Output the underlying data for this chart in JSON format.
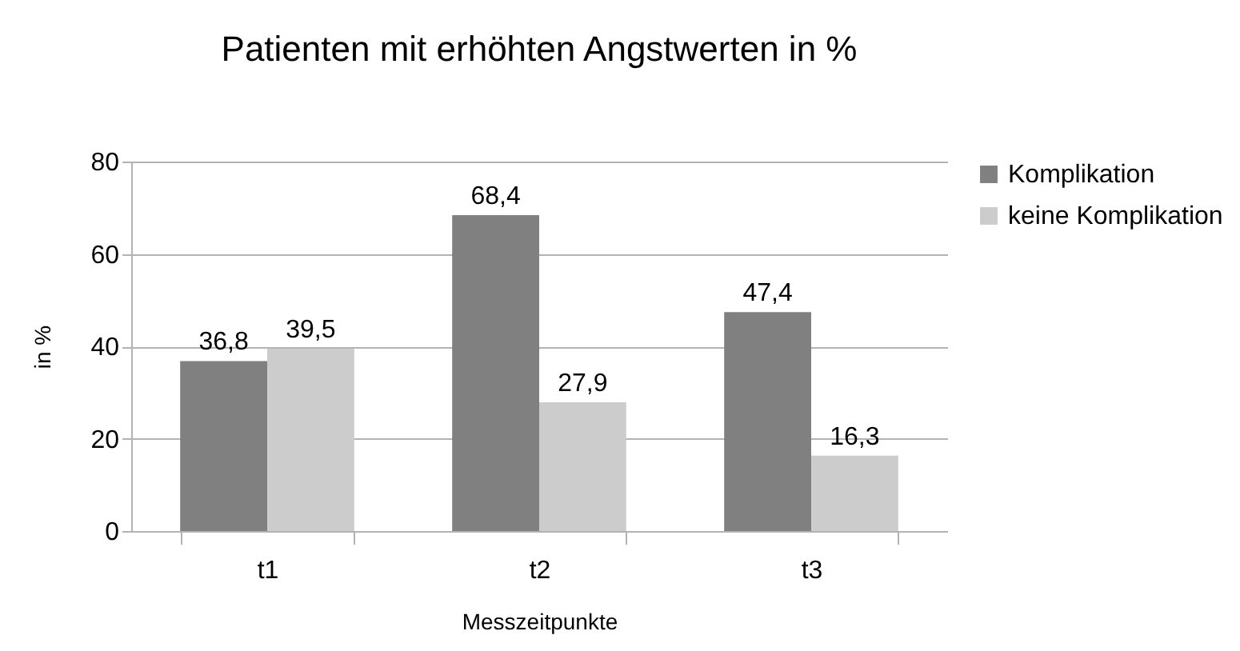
{
  "chart_data": {
    "type": "bar",
    "title": "Patienten mit erhöhten Angstwerten in %",
    "xlabel": "Messzeitpunkte",
    "ylabel": "in %",
    "categories": [
      "t1",
      "t2",
      "t3"
    ],
    "series": [
      {
        "name": "Komplikation",
        "color": "#808080",
        "values": [
          36.8,
          68.4,
          47.4
        ],
        "value_labels": [
          "36,8",
          "68,4",
          "47,4"
        ]
      },
      {
        "name": "keine Komplikation",
        "color": "#cccccc",
        "values": [
          39.5,
          27.9,
          16.3
        ],
        "value_labels": [
          "39,5",
          "27,9",
          "16,3"
        ]
      }
    ],
    "ylim": [
      0,
      80
    ],
    "yticks": [
      0,
      20,
      40,
      60,
      80
    ],
    "grid": "y",
    "legend": "right"
  }
}
